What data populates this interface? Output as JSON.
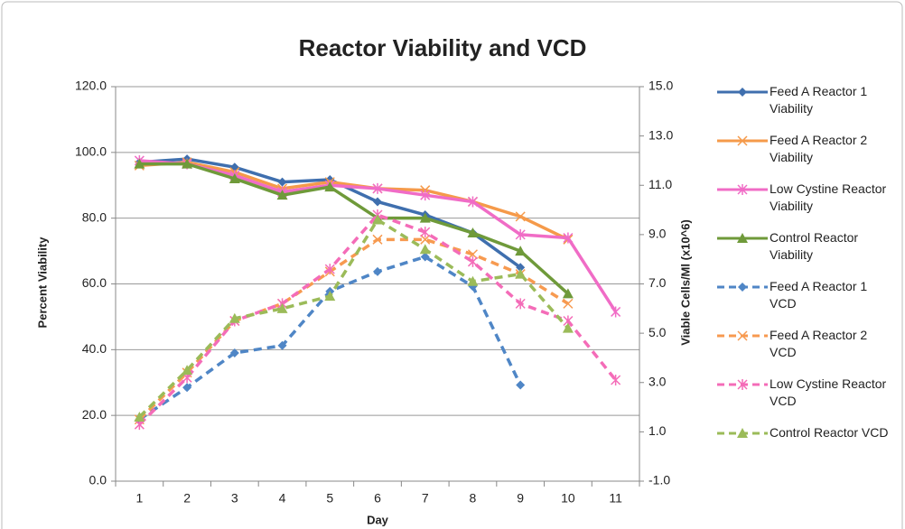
{
  "chart_data": {
    "type": "line",
    "title": "Reactor Viability and VCD",
    "x_label": "Day",
    "y_label": "Percent Viability",
    "y2_label": "Viable Cells/Ml (x10^6)",
    "categories": [
      "1",
      "2",
      "3",
      "4",
      "5",
      "6",
      "7",
      "8",
      "9",
      "10",
      "11"
    ],
    "ylim": [
      0,
      120
    ],
    "yticks": [
      {
        "value": 0,
        "label": "0.0"
      },
      {
        "value": 20,
        "label": "20.0"
      },
      {
        "value": 40,
        "label": "40.0"
      },
      {
        "value": 60,
        "label": "60.0"
      },
      {
        "value": 80,
        "label": "80.0"
      },
      {
        "value": 100,
        "label": "100.0"
      },
      {
        "value": 120,
        "label": "120.0"
      }
    ],
    "y2lim": [
      -1,
      15
    ],
    "y2ticks": [
      {
        "value": -1,
        "label": "-1.0"
      },
      {
        "value": 1,
        "label": "1.0"
      },
      {
        "value": 3,
        "label": "3.0"
      },
      {
        "value": 5,
        "label": "5.0"
      },
      {
        "value": 7,
        "label": "7.0"
      },
      {
        "value": 9,
        "label": "9.0"
      },
      {
        "value": 11,
        "label": "11.0"
      },
      {
        "value": 13,
        "label": "13.0"
      },
      {
        "value": 15,
        "label": "15.0"
      }
    ],
    "grid": true,
    "legend": "right",
    "series": [
      {
        "name": "Feed A Reactor 1 Viability",
        "color": "#3f6fae",
        "dashed": false,
        "marker": "diamond",
        "values": [
          97,
          98,
          95.5,
          91,
          91.7,
          85,
          81,
          75.5,
          65,
          null,
          null
        ]
      },
      {
        "name": "Feed A Reactor 2 Viability",
        "color": "#f59a4a",
        "dashed": false,
        "marker": "x",
        "values": [
          96,
          97,
          94,
          89,
          91,
          89,
          88.5,
          85,
          80.5,
          73.5,
          null
        ]
      },
      {
        "name": "Low Cystine Reactor Viability",
        "color": "#f06cc6",
        "dashed": false,
        "marker": "star",
        "values": [
          97.5,
          96.5,
          93,
          88,
          90,
          89,
          87,
          85,
          75,
          74,
          51.5
        ]
      },
      {
        "name": "Control Reactor Viability",
        "color": "#6f9a3a",
        "dashed": false,
        "marker": "triangle",
        "values": [
          96.5,
          96.5,
          92,
          87,
          89.5,
          80,
          80,
          75.5,
          70,
          57,
          null
        ]
      },
      {
        "name": "Feed A Reactor 1 VCD",
        "color": "#4f86c6",
        "dashed": true,
        "marker": "diamond",
        "axis": "y2",
        "values": [
          1.5,
          2.8,
          4.2,
          4.5,
          6.7,
          7.5,
          8.1,
          6.9,
          2.9,
          null,
          null
        ]
      },
      {
        "name": "Feed A Reactor 2 VCD",
        "color": "#f79a50",
        "dashed": true,
        "marker": "x",
        "axis": "y2",
        "values": [
          1.5,
          3.4,
          5.5,
          6.2,
          7.5,
          8.8,
          8.8,
          8.2,
          7.4,
          6.2,
          null
        ]
      },
      {
        "name": "Low Cystine Reactor VCD",
        "color": "#f46cb8",
        "dashed": true,
        "marker": "star",
        "axis": "y2",
        "values": [
          1.3,
          3.2,
          5.5,
          6.2,
          7.6,
          9.8,
          9.1,
          7.9,
          6.2,
          5.5,
          3.1
        ]
      },
      {
        "name": "Control Reactor VCD",
        "color": "#9bbb59",
        "dashed": true,
        "marker": "triangle",
        "axis": "y2",
        "values": [
          1.6,
          3.5,
          5.6,
          6.0,
          6.5,
          9.6,
          8.4,
          7.1,
          7.4,
          5.2,
          null
        ]
      }
    ]
  }
}
